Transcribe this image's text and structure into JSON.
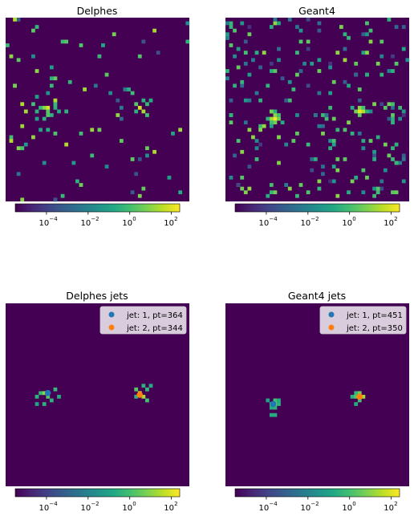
{
  "figure": {
    "panels": [
      {
        "id": "delphes",
        "title": "Delphes",
        "colorbar": {
          "ticks": [
            "10",
            "10",
            "10",
            "10"
          ],
          "exponents": [
            "−4",
            "−2",
            "0",
            "2"
          ],
          "tick_values": [
            -4,
            -2,
            0,
            2
          ],
          "log_range": [
            -5.5,
            2.4
          ]
        }
      },
      {
        "id": "geant4",
        "title": "Geant4",
        "colorbar": {
          "ticks": [
            "10",
            "10",
            "10",
            "10"
          ],
          "exponents": [
            "−4",
            "−2",
            "0",
            "2"
          ],
          "tick_values": [
            -4,
            -2,
            0,
            2
          ],
          "log_range": [
            -5.5,
            2.4
          ]
        }
      },
      {
        "id": "delphes-jets",
        "title": "Delphes jets",
        "legend": [
          {
            "label": "jet: 1, pt=364",
            "color": "#1f77b4"
          },
          {
            "label": "jet: 2, pt=344",
            "color": "#ff7f0e"
          }
        ],
        "colorbar": {
          "ticks": [
            "10",
            "10",
            "10",
            "10"
          ],
          "exponents": [
            "−4",
            "−2",
            "0",
            "2"
          ],
          "tick_values": [
            -4,
            -2,
            0,
            2
          ],
          "log_range": [
            -5.5,
            2.4
          ]
        }
      },
      {
        "id": "geant4-jets",
        "title": "Geant4 jets",
        "legend": [
          {
            "label": "jet: 1, pt=451",
            "color": "#1f77b4"
          },
          {
            "label": "jet: 2, pt=350",
            "color": "#ff7f0e"
          }
        ],
        "colorbar": {
          "ticks": [
            "10",
            "10",
            "10",
            "10"
          ],
          "exponents": [
            "−4",
            "−2",
            "0",
            "2"
          ],
          "tick_values": [
            -4,
            -2,
            0,
            2
          ],
          "log_range": [
            -5.5,
            2.4
          ]
        }
      }
    ]
  },
  "chart_data": [
    {
      "type": "heatmap",
      "title": "Delphes",
      "grid": [
        50,
        50
      ],
      "background": "#440154",
      "scale": "log",
      "color_range": [
        3e-06,
        250
      ],
      "hot_cells": [
        {
          "col": 11,
          "row": 24,
          "value": 80
        },
        {
          "col": 10,
          "row": 24,
          "value": 10
        },
        {
          "col": 11,
          "row": 25,
          "value": 2
        },
        {
          "col": 9,
          "row": 24,
          "value": 0.5
        },
        {
          "col": 8,
          "row": 25,
          "value": 0.3
        },
        {
          "col": 13,
          "row": 23,
          "value": 0.5
        },
        {
          "col": 12,
          "row": 26,
          "value": 0.3
        },
        {
          "col": 8,
          "row": 27,
          "value": 0.1
        },
        {
          "col": 14,
          "row": 25,
          "value": 0.2
        },
        {
          "col": 10,
          "row": 27,
          "value": 0.3
        },
        {
          "col": 36,
          "row": 24,
          "value": 90
        },
        {
          "col": 37,
          "row": 25,
          "value": 20
        },
        {
          "col": 35,
          "row": 23,
          "value": 2
        },
        {
          "col": 38,
          "row": 23,
          "value": 0.5
        },
        {
          "col": 37,
          "row": 22,
          "value": 0.3
        },
        {
          "col": 38,
          "row": 26,
          "value": 1
        },
        {
          "col": 35,
          "row": 25,
          "value": 0.3
        },
        {
          "col": 39,
          "row": 22,
          "value": 0.2
        }
      ],
      "noise": {
        "count": 90,
        "seed": 11,
        "value_range_log": [
          -4.2,
          1.5
        ]
      }
    },
    {
      "type": "heatmap",
      "title": "Geant4",
      "grid": [
        50,
        50
      ],
      "background": "#440154",
      "scale": "log",
      "color_range": [
        3e-06,
        250
      ],
      "hot_cells": [
        {
          "col": 13,
          "row": 27,
          "value": 200
        },
        {
          "col": 12,
          "row": 27,
          "value": 20
        },
        {
          "col": 13,
          "row": 26,
          "value": 10
        },
        {
          "col": 14,
          "row": 27,
          "value": 5
        },
        {
          "col": 13,
          "row": 28,
          "value": 5
        },
        {
          "col": 12,
          "row": 28,
          "value": 1
        },
        {
          "col": 14,
          "row": 26,
          "value": 1
        },
        {
          "col": 11,
          "row": 27,
          "value": 0.3
        },
        {
          "col": 15,
          "row": 28,
          "value": 0.2
        },
        {
          "col": 12,
          "row": 29,
          "value": 0.1
        },
        {
          "col": 36,
          "row": 25,
          "value": 150
        },
        {
          "col": 37,
          "row": 25,
          "value": 30
        },
        {
          "col": 36,
          "row": 24,
          "value": 10
        },
        {
          "col": 35,
          "row": 25,
          "value": 5
        },
        {
          "col": 36,
          "row": 26,
          "value": 3
        },
        {
          "col": 37,
          "row": 24,
          "value": 1
        },
        {
          "col": 38,
          "row": 25,
          "value": 0.3
        },
        {
          "col": 34,
          "row": 24,
          "value": 0.2
        },
        {
          "col": 44,
          "row": 23,
          "value": 5
        },
        {
          "col": 45,
          "row": 23,
          "value": 1
        }
      ],
      "noise": {
        "count": 230,
        "seed": 29,
        "value_range_log": [
          -4.5,
          1.2
        ]
      }
    },
    {
      "type": "heatmap",
      "title": "Delphes jets",
      "grid": [
        50,
        50
      ],
      "background": "#440154",
      "scale": "log",
      "color_range": [
        3e-06,
        250
      ],
      "hot_cells": [
        {
          "col": 11,
          "row": 24,
          "value": 80
        },
        {
          "col": 10,
          "row": 24,
          "value": 10
        },
        {
          "col": 11,
          "row": 25,
          "value": 2
        },
        {
          "col": 9,
          "row": 24,
          "value": 0.5
        },
        {
          "col": 8,
          "row": 25,
          "value": 0.3
        },
        {
          "col": 13,
          "row": 23,
          "value": 0.5
        },
        {
          "col": 12,
          "row": 26,
          "value": 0.3
        },
        {
          "col": 8,
          "row": 27,
          "value": 0.1
        },
        {
          "col": 14,
          "row": 25,
          "value": 0.2
        },
        {
          "col": 10,
          "row": 27,
          "value": 0.3
        },
        {
          "col": 36,
          "row": 24,
          "value": 90
        },
        {
          "col": 37,
          "row": 25,
          "value": 20
        },
        {
          "col": 35,
          "row": 23,
          "value": 2
        },
        {
          "col": 38,
          "row": 23,
          "value": 0.5
        },
        {
          "col": 37,
          "row": 22,
          "value": 0.3
        },
        {
          "col": 38,
          "row": 26,
          "value": 1
        },
        {
          "col": 35,
          "row": 25,
          "value": 0.3
        },
        {
          "col": 39,
          "row": 22,
          "value": 0.2
        }
      ],
      "noise": {
        "count": 0,
        "seed": 1,
        "value_range_log": [
          -4,
          0
        ]
      },
      "jet_markers": [
        {
          "name": "jet: 1, pt=364",
          "col": 11.5,
          "row": 24.5,
          "color": "#1f77b4"
        },
        {
          "name": "jet: 2, pt=344",
          "col": 36.5,
          "row": 25,
          "color": "#ff7f0e"
        }
      ]
    },
    {
      "type": "heatmap",
      "title": "Geant4 jets",
      "grid": [
        50,
        50
      ],
      "background": "#440154",
      "scale": "log",
      "color_range": [
        3e-06,
        250
      ],
      "hot_cells": [
        {
          "col": 13,
          "row": 27,
          "value": 5
        },
        {
          "col": 12,
          "row": 27,
          "value": 0.5
        },
        {
          "col": 13,
          "row": 26,
          "value": 1
        },
        {
          "col": 14,
          "row": 27,
          "value": 0.3
        },
        {
          "col": 13,
          "row": 28,
          "value": 0.3
        },
        {
          "col": 12,
          "row": 28,
          "value": 0.2
        },
        {
          "col": 14,
          "row": 26,
          "value": 0.2
        },
        {
          "col": 11,
          "row": 26,
          "value": 0.1
        },
        {
          "col": 12,
          "row": 30,
          "value": 0.2
        },
        {
          "col": 13,
          "row": 30,
          "value": 0.2
        },
        {
          "col": 36,
          "row": 25,
          "value": 150
        },
        {
          "col": 37,
          "row": 25,
          "value": 20
        },
        {
          "col": 36,
          "row": 24,
          "value": 5
        },
        {
          "col": 35,
          "row": 25,
          "value": 2
        },
        {
          "col": 36,
          "row": 26,
          "value": 1
        },
        {
          "col": 35,
          "row": 24,
          "value": 0.5
        },
        {
          "col": 34,
          "row": 25,
          "value": 0.3
        },
        {
          "col": 35,
          "row": 27,
          "value": 0.2
        }
      ],
      "noise": {
        "count": 0,
        "seed": 2,
        "value_range_log": [
          -4,
          0
        ]
      },
      "jet_markers": [
        {
          "name": "jet: 1, pt=451",
          "col": 13,
          "row": 27.5,
          "color": "#1f77b4"
        },
        {
          "name": "jet: 2, pt=350",
          "col": 36.5,
          "row": 25.5,
          "color": "#ff7f0e"
        }
      ]
    }
  ]
}
